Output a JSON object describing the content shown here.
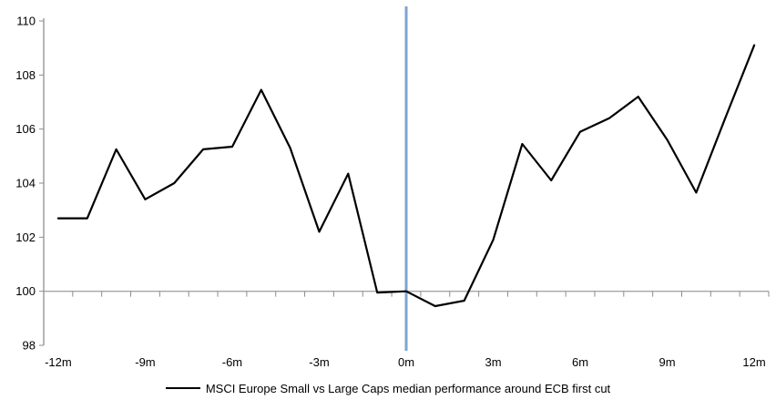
{
  "chart_data": {
    "type": "line",
    "title": "",
    "xlabel": "",
    "ylabel": "",
    "x": [
      -12,
      -11,
      -10,
      -9,
      -8,
      -7,
      -6,
      -5,
      -4,
      -3,
      -2,
      -1,
      0,
      1,
      2,
      3,
      4,
      5,
      6,
      7,
      8,
      9,
      10,
      11,
      12
    ],
    "series": [
      {
        "name": "MSCI Europe Small vs Large Caps median performance around ECB first cut",
        "color": "#000000",
        "values": [
          102.7,
          102.7,
          105.25,
          103.4,
          104.0,
          105.25,
          105.35,
          107.45,
          105.3,
          102.2,
          104.35,
          99.95,
          100.0,
          99.45,
          99.65,
          101.9,
          105.45,
          104.1,
          105.9,
          106.4,
          107.2,
          105.6,
          103.65,
          106.4,
          109.1
        ]
      }
    ],
    "ylim": [
      98,
      110
    ],
    "y_ticks": [
      98,
      100,
      102,
      104,
      106,
      108,
      110
    ],
    "y_tick_labels": [
      "98",
      "100",
      "102",
      "104",
      "106",
      "108",
      "110"
    ],
    "x_tick_values": [
      -12,
      -9,
      -6,
      -3,
      0,
      3,
      6,
      9,
      12
    ],
    "x_tick_labels": [
      "-12m",
      "-9m",
      "-6m",
      "-3m",
      "0m",
      "3m",
      "6m",
      "9m",
      "12m"
    ],
    "baseline_value": 100,
    "event_line_x": 0,
    "grid": "baseline-only",
    "legend_position": "bottom-center",
    "colors": {
      "series_line": "#000000",
      "event_line": "#7ea6cf",
      "axis_line": "#909090",
      "baseline": "#a6a6a6",
      "tick": "#8c8c8c",
      "label_text": "#000000",
      "background": "#ffffff"
    }
  },
  "legend": {
    "label": "MSCI Europe Small vs Large Caps median performance around ECB first cut"
  }
}
